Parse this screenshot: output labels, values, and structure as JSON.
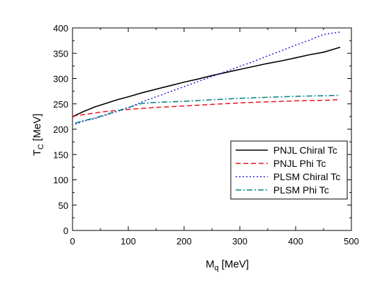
{
  "chart_data": {
    "type": "line",
    "xlabel_main": "M",
    "xlabel_sub": "q",
    "xlabel_unit": " [MeV]",
    "ylabel_main": "T",
    "ylabel_sub": "C",
    "ylabel_unit": " [MeV]",
    "xlim": [
      0,
      500
    ],
    "ylim": [
      0,
      400
    ],
    "xticks": [
      0,
      100,
      200,
      300,
      400,
      500
    ],
    "yticks": [
      0,
      50,
      100,
      150,
      200,
      250,
      300,
      350,
      400
    ],
    "grid": false,
    "legend_position": "lower-right",
    "series": [
      {
        "name": "PNJL Chiral Tc",
        "color": "#000000",
        "dash": "solid",
        "x": [
          0,
          10,
          20,
          40,
          60,
          80,
          100,
          125,
          150,
          175,
          200,
          225,
          250,
          275,
          300,
          325,
          350,
          375,
          400,
          425,
          450,
          480
        ],
        "y": [
          225,
          230,
          235,
          244,
          251,
          258,
          264,
          272,
          279,
          286,
          293,
          299,
          306,
          312,
          318,
          324,
          330,
          335,
          341,
          347,
          352,
          362
        ]
      },
      {
        "name": "PNJL Phi Tc",
        "color": "#e8141c",
        "dash": "dashed",
        "x": [
          0,
          20,
          40,
          60,
          80,
          100,
          150,
          200,
          250,
          300,
          350,
          400,
          450,
          475
        ],
        "y": [
          226,
          229,
          232,
          235,
          237,
          239,
          243,
          246,
          249,
          252,
          254,
          256,
          257,
          258
        ]
      },
      {
        "name": "PLSM Chiral Tc",
        "color": "#1f1fd6",
        "dash": "dotted",
        "x": [
          5,
          20,
          40,
          60,
          80,
          100,
          125,
          150,
          175,
          200,
          225,
          250,
          275,
          300,
          325,
          350,
          375,
          400,
          425,
          450,
          480
        ],
        "y": [
          210,
          216,
          221,
          228,
          235,
          242,
          254,
          264,
          274,
          284,
          294,
          304,
          314,
          324,
          334,
          345,
          355,
          366,
          376,
          387,
          392
        ]
      },
      {
        "name": "PLSM Phi Tc",
        "color": "#008080",
        "dash": "dashdot",
        "x": [
          5,
          20,
          40,
          60,
          80,
          100,
          125,
          150,
          200,
          250,
          300,
          350,
          400,
          450,
          480
        ],
        "y": [
          212,
          217,
          222,
          229,
          236,
          243,
          251,
          253,
          255,
          258,
          261,
          263,
          265,
          266,
          267
        ]
      }
    ]
  }
}
